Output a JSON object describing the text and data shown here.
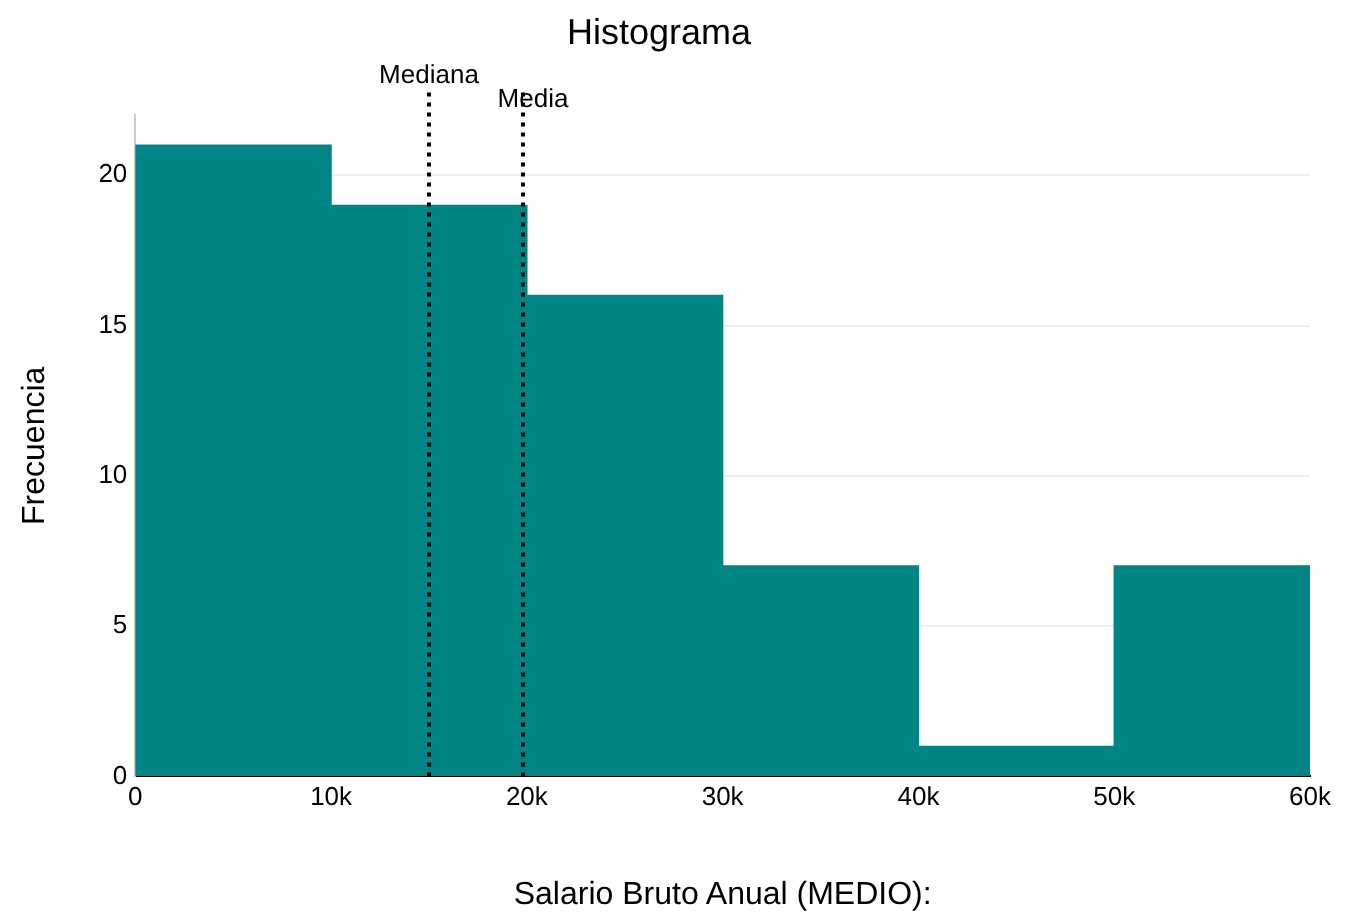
{
  "chart_data": {
    "type": "histogram",
    "title": "Histograma",
    "xlabel": "Salario Bruto Anual (MEDIO):",
    "ylabel": "Frecuencia",
    "bins": [
      0,
      10000,
      20000,
      30000,
      40000,
      50000,
      60000
    ],
    "values": [
      21,
      19,
      16,
      7,
      1,
      7
    ],
    "color": "#008585",
    "xlim": [
      0,
      60000
    ],
    "xticks": [
      0,
      {
        "value": 10000,
        "label": "10k"
      },
      {
        "value": 20000,
        "label": "20k"
      },
      {
        "value": 30000,
        "label": "30k"
      },
      {
        "value": 40000,
        "label": "40k"
      },
      {
        "value": 50000,
        "label": "50k"
      },
      {
        "value": 60000,
        "label": "60k"
      }
    ],
    "ylim": [
      0,
      22
    ],
    "yticks": [
      0,
      5,
      10,
      15,
      20
    ],
    "grid": "y",
    "legend": false,
    "ref_lines": [
      {
        "axis": "x",
        "value": 15000,
        "label": "Mediana",
        "line_style": "dotted",
        "color": "#000000"
      },
      {
        "axis": "x",
        "value": 19800,
        "label": "Media",
        "line_style": "dotted",
        "color": "#000000"
      }
    ]
  }
}
